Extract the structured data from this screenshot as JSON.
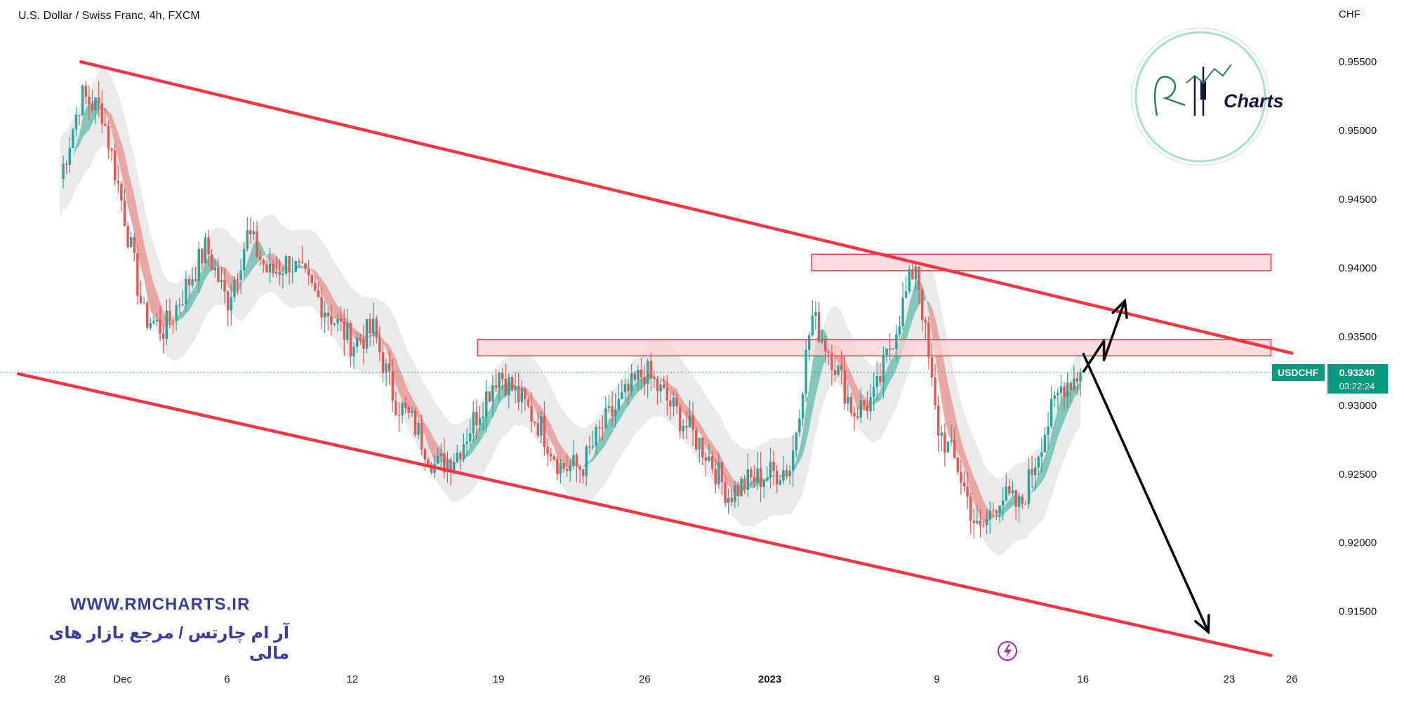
{
  "header": {
    "symbol_title": "U.S. Dollar / Swiss Franc, 4h, FXCM"
  },
  "price_axis": {
    "currency": "CHF",
    "current_symbol": "USDCHF",
    "current_price": "0.93240",
    "countdown": "03:22:24"
  },
  "logo": {
    "brand_text": "Charts",
    "brand_script": "RM"
  },
  "watermark": {
    "url": "WWW.RMCHARTS.IR",
    "persian_text": "آر ام چارتس / مرجع بازار های مالی"
  },
  "colors": {
    "channel_line": "#f23645",
    "zone_fill": "#fbd3d6",
    "zone_border": "#f23645",
    "bull": "#26a69a",
    "bear": "#ef5350",
    "ribbon_bull": "#6fbfb0",
    "ribbon_bear": "#e89a98",
    "envelope": "#e6e6e6",
    "arrow": "#000000",
    "label_bg": "#089981",
    "logo_circle": "#a9dcd3",
    "watermark": "#3a3d99"
  },
  "icons": {
    "lightning": "lightning-icon"
  },
  "chart_data": {
    "type": "candlestick",
    "title": "U.S. Dollar / Swiss Franc, 4h, FXCM",
    "ylabel": "CHF",
    "ylim": [
      0.911,
      0.9595
    ],
    "y_ticks": [
      "0.95500",
      "0.95000",
      "0.94500",
      "0.94000",
      "0.93500",
      "0.93000",
      "0.92500",
      "0.92000",
      "0.91500"
    ],
    "x_ticks": [
      "28",
      "Dec",
      "6",
      "12",
      "19",
      "26",
      "2023",
      "9",
      "16",
      "23",
      "26"
    ],
    "grid": false,
    "last_price": 0.9324,
    "price_path": [
      [
        "2022-11-28",
        0.9465
      ],
      [
        "2022-11-29",
        0.9525
      ],
      [
        "2022-11-30",
        0.9515
      ],
      [
        "2022-12-01",
        0.9445
      ],
      [
        "2022-12-02",
        0.9365
      ],
      [
        "2022-12-03",
        0.9355
      ],
      [
        "2022-12-05",
        0.9415
      ],
      [
        "2022-12-06",
        0.9375
      ],
      [
        "2022-12-07",
        0.9425
      ],
      [
        "2022-12-08",
        0.9395
      ],
      [
        "2022-12-09",
        0.9405
      ],
      [
        "2022-12-10",
        0.9385
      ],
      [
        "2022-12-12",
        0.9345
      ],
      [
        "2022-12-13",
        0.9355
      ],
      [
        "2022-12-14",
        0.9305
      ],
      [
        "2022-12-15",
        0.9285
      ],
      [
        "2022-12-16",
        0.9255
      ],
      [
        "2022-12-17",
        0.9265
      ],
      [
        "2022-12-19",
        0.9325
      ],
      [
        "2022-12-20",
        0.9305
      ],
      [
        "2022-12-21",
        0.9285
      ],
      [
        "2022-12-22",
        0.9255
      ],
      [
        "2022-12-23",
        0.9255
      ],
      [
        "2022-12-24",
        0.9285
      ],
      [
        "2022-12-26",
        0.9325
      ],
      [
        "2022-12-27",
        0.9305
      ],
      [
        "2022-12-28",
        0.9285
      ],
      [
        "2022-12-29",
        0.9265
      ],
      [
        "2022-12-30",
        0.9235
      ],
      [
        "2022-12-31",
        0.9245
      ],
      [
        "2023-01-02",
        0.9255
      ],
      [
        "2023-01-03",
        0.9365
      ],
      [
        "2023-01-04",
        0.9335
      ],
      [
        "2023-01-05",
        0.9295
      ],
      [
        "2023-01-06",
        0.9305
      ],
      [
        "2023-01-07",
        0.9355
      ],
      [
        "2023-01-08",
        0.9405
      ],
      [
        "2023-01-09",
        0.9285
      ],
      [
        "2023-01-10",
        0.9255
      ],
      [
        "2023-01-11",
        0.9205
      ],
      [
        "2023-01-12",
        0.9235
      ],
      [
        "2023-01-13",
        0.9225
      ],
      [
        "2023-01-14",
        0.9275
      ],
      [
        "2023-01-15",
        0.9315
      ],
      [
        "2023-01-16",
        0.9324
      ]
    ],
    "channel": {
      "upper": [
        [
          "2022-11-29",
          0.955
        ],
        [
          "2023-01-26",
          0.9338
        ]
      ],
      "lower": [
        [
          "2022-11-26",
          0.9323
        ],
        [
          "2023-01-25",
          0.9118
        ]
      ]
    },
    "zones": [
      {
        "from": "2023-01-03",
        "to": "2023-01-25",
        "low": 0.9398,
        "high": 0.941
      },
      {
        "from": "2022-12-18",
        "to": "2023-01-25",
        "low": 0.9336,
        "high": 0.9348
      }
    ],
    "projection_arrows": [
      [
        [
          "2023-01-16",
          0.9324
        ],
        [
          "2023-01-17",
          0.9347
        ],
        [
          "2023-01-17",
          0.9333
        ],
        [
          "2023-01-18",
          0.9376
        ]
      ],
      [
        [
          "2023-01-16",
          0.9338
        ],
        [
          "2023-01-22",
          0.9135
        ]
      ]
    ]
  }
}
